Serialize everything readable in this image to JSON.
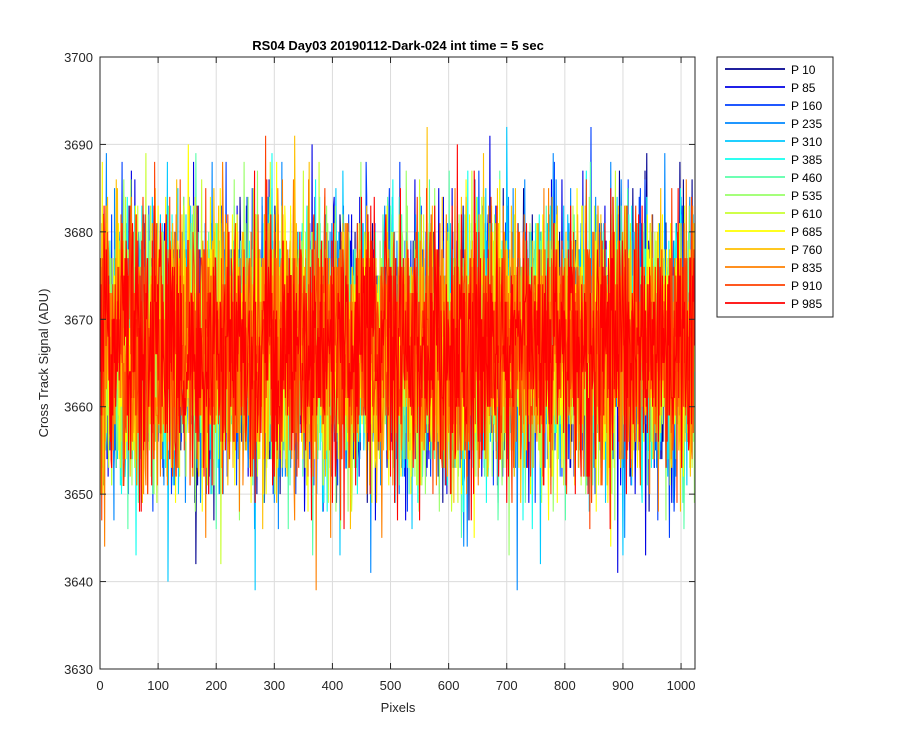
{
  "chart_data": {
    "type": "line",
    "title": "RS04 Day03 20190112-Dark-024 int time = 5 sec",
    "xlabel": "Pixels",
    "ylabel": "Cross Track Signal (ADU)",
    "xlim": [
      0,
      1024
    ],
    "ylim": [
      3630,
      3700
    ],
    "xticks": [
      0,
      100,
      200,
      300,
      400,
      500,
      600,
      700,
      800,
      900,
      1000
    ],
    "yticks": [
      3630,
      3640,
      3650,
      3660,
      3670,
      3680,
      3690,
      3700
    ],
    "grid": true,
    "legend_position": "outside-top-right",
    "signal_model": {
      "mean": 3667,
      "typical_range": [
        3650,
        3685
      ],
      "approx_extremes": [
        3636,
        3695
      ],
      "points_per_series": 1024,
      "note_extremes": "spikes reach ~3695 near x≈550, 670, 920, 940; minima ~3638 near x≈345 and ~3636 near x≈620"
    },
    "series": [
      {
        "name": "P 10",
        "color": "#00008f"
      },
      {
        "name": "P 85",
        "color": "#0000e4"
      },
      {
        "name": "P 160",
        "color": "#0040ff"
      },
      {
        "name": "P 235",
        "color": "#0088ff"
      },
      {
        "name": "P 310",
        "color": "#00c8ff"
      },
      {
        "name": "P 385",
        "color": "#10ffef"
      },
      {
        "name": "P 460",
        "color": "#58ffa8"
      },
      {
        "name": "P 535",
        "color": "#98ff68"
      },
      {
        "name": "P 610",
        "color": "#c8ff30"
      },
      {
        "name": "P 685",
        "color": "#ffff00"
      },
      {
        "name": "P 760",
        "color": "#ffc000"
      },
      {
        "name": "P 835",
        "color": "#ff8000"
      },
      {
        "name": "P 910",
        "color": "#ff4000"
      },
      {
        "name": "P 985",
        "color": "#ff0000"
      }
    ]
  }
}
